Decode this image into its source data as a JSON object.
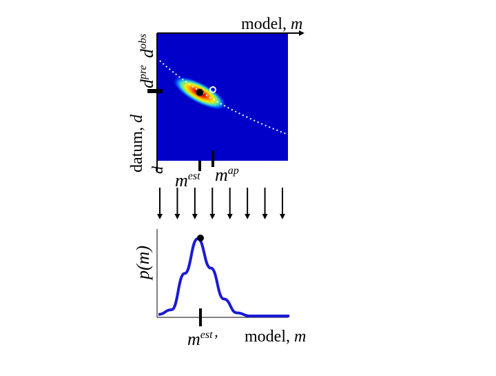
{
  "axis_top_model": {
    "word": "model,",
    "symbol": "m"
  },
  "axis_left_datum": {
    "word": "datum,",
    "symbol": "d"
  },
  "labels": {
    "d_pre_base": "d",
    "d_pre_sup": "pre",
    "d_obs_base": "d",
    "d_obs_sup": "obs",
    "m_est_base": "m",
    "m_est_sup": "est",
    "m_ap_base": "m",
    "m_ap_sup": "ap",
    "p_m": "p(m)",
    "m_est_prime_base": "m",
    "m_est_prime_sup": "est",
    "m_est_prime_mark": "’",
    "bottom_model_word": "model,",
    "bottom_model_symbol": "m"
  },
  "colors": {
    "heatmap_background": "#0000c8",
    "curve": "#1a1ad6",
    "axis": "#000000"
  },
  "posterior_curve": {
    "type": "line",
    "x": [
      0.0,
      0.1,
      0.2,
      0.3,
      0.4,
      0.5,
      0.6,
      0.7,
      0.8,
      0.9,
      1.0
    ],
    "y": [
      0.02,
      0.08,
      0.55,
      1.0,
      0.62,
      0.22,
      0.04,
      0.0,
      0.0,
      0.0,
      0.0
    ]
  },
  "arrows_count": 8
}
